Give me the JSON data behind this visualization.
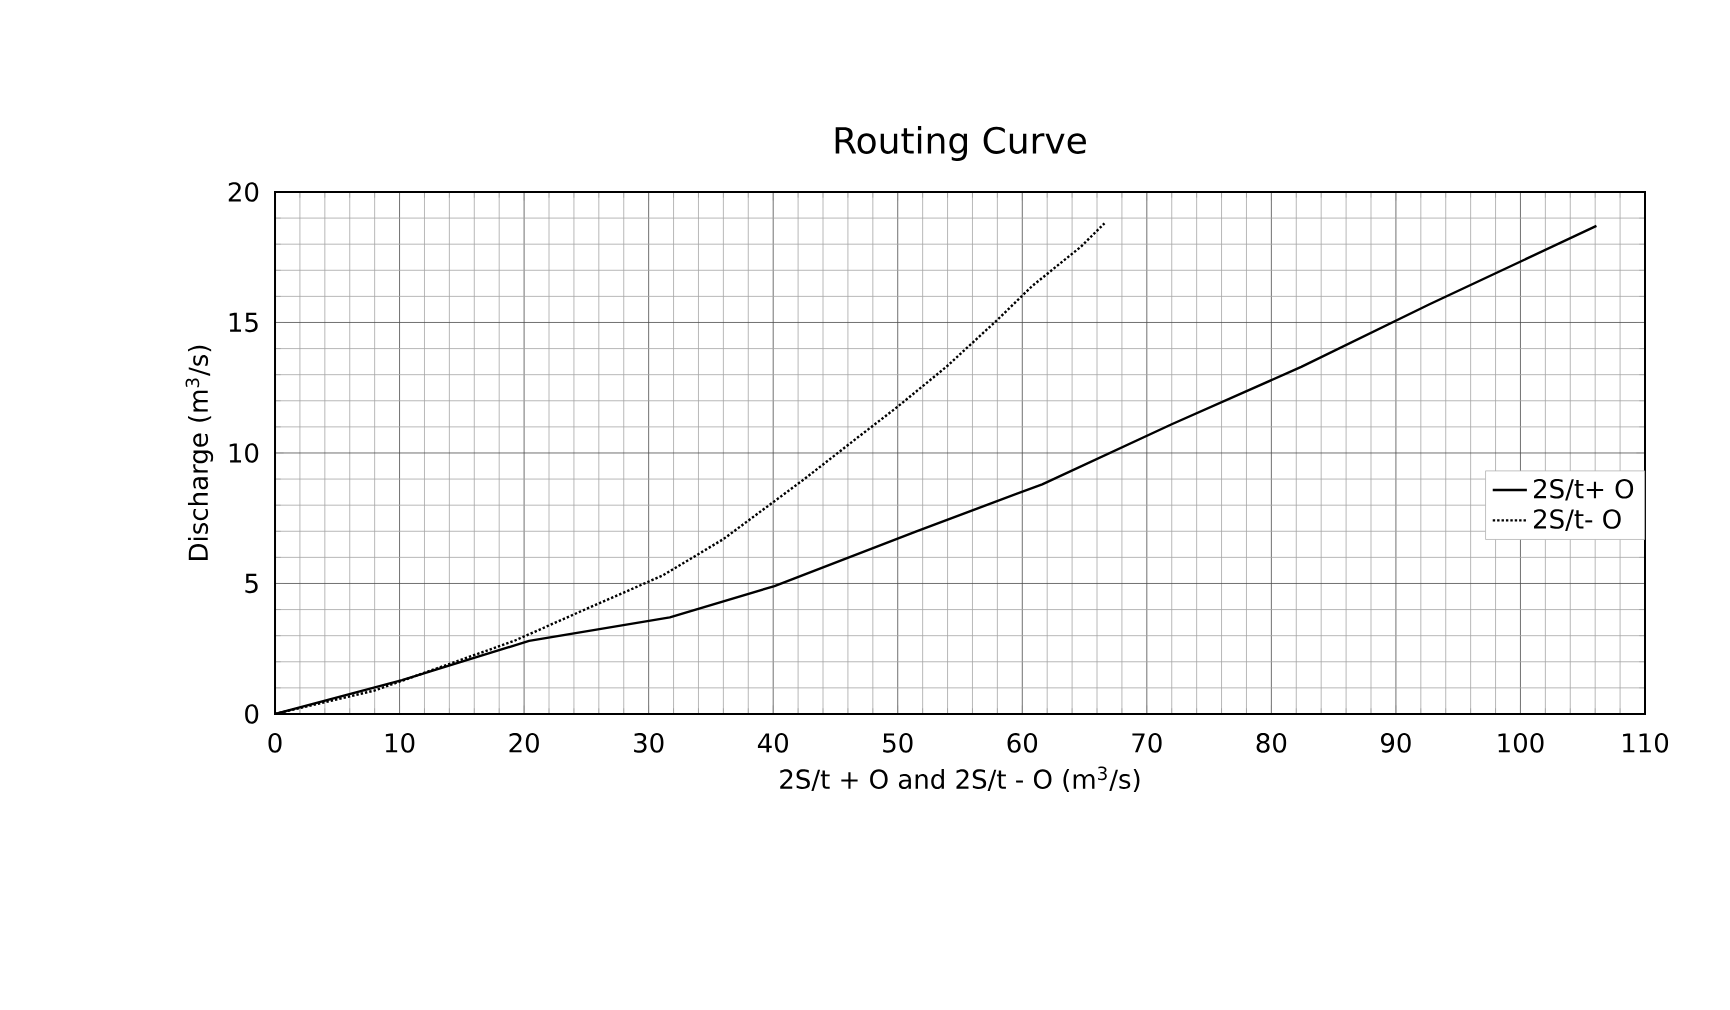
{
  "chart_data": {
    "type": "line",
    "title": "Routing Curve",
    "xlabel": "2S/t + O and 2S/t - O (m$^{3}$/s)",
    "ylabel": "Discharge (m$^{3}$/s)",
    "xlim": [
      0,
      110
    ],
    "ylim": [
      0,
      20
    ],
    "xticks": [
      0,
      10,
      20,
      30,
      40,
      50,
      60,
      70,
      80,
      90,
      100,
      110
    ],
    "yticks": [
      0,
      5,
      10,
      15,
      20
    ],
    "grid": true,
    "legend": "right",
    "marker": "none",
    "series": [
      {
        "name": "2S/t+ O",
        "color": "#000000",
        "line_style": "solid",
        "x": [
          0,
          10.2,
          20.4,
          31.7,
          40.1,
          51.5,
          61.6,
          72.0,
          82.4,
          92.7,
          106.1
        ],
        "values": [
          0,
          1.3,
          2.8,
          3.7,
          4.9,
          7.0,
          8.8,
          11.1,
          13.3,
          15.7,
          18.7
        ]
      },
      {
        "name": "2S/t- O",
        "color": "#000000",
        "line_style": "dotted",
        "x": [
          0,
          8,
          19.2,
          24.4,
          31.1,
          36,
          42.5,
          46.8,
          49.8,
          53.9,
          58,
          60.8,
          64.7,
          66.6
        ],
        "values": [
          0,
          0.9,
          2.8,
          3.9,
          5.3,
          6.7,
          9.0,
          10.6,
          11.7,
          13.3,
          15.1,
          16.4,
          17.9,
          18.8
        ]
      }
    ]
  }
}
